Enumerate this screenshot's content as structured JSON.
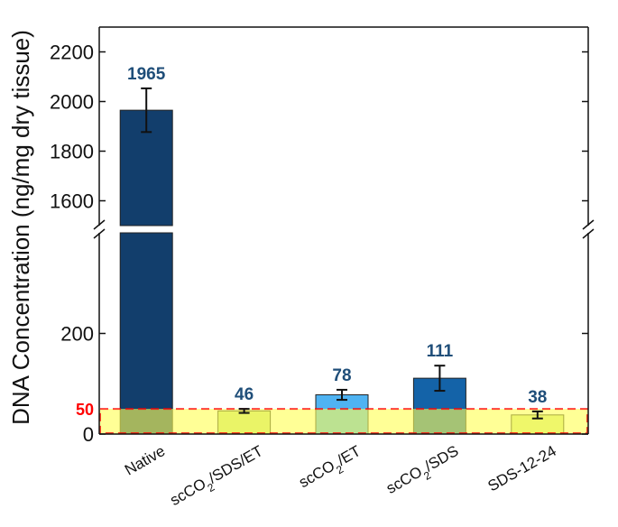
{
  "chart_data": {
    "type": "bar",
    "title": "",
    "ylabel": "DNA Concentration (ng/mg dry tissue)",
    "xlabel": "",
    "y_axis_broken": true,
    "ylim_lower": [
      0,
      400
    ],
    "ylim_upper": [
      1500,
      2300
    ],
    "yticks_lower": [
      "0",
      "200"
    ],
    "yticks_upper": [
      "1600",
      "1800",
      "2000",
      "2200"
    ],
    "categories": [
      {
        "label": "Native",
        "sub": "",
        "tail": ""
      },
      {
        "label": "scCO",
        "sub": "2",
        "tail": "/SDS/ET"
      },
      {
        "label": "scCO",
        "sub": "2",
        "tail": "/ET"
      },
      {
        "label": "scCO",
        "sub": "2",
        "tail": "/SDS"
      },
      {
        "label": "SDS-12-24",
        "sub": "",
        "tail": ""
      }
    ],
    "values": [
      1965,
      46,
      78,
      111,
      38
    ],
    "value_labels": [
      "1965",
      "46",
      "78",
      "111",
      "38"
    ],
    "errors": [
      88,
      4,
      10,
      25,
      7
    ],
    "bar_colors": [
      "#123e6c",
      "#c7e285",
      "#4fb3f2",
      "#1463a8",
      "#d5eb8b"
    ],
    "value_label_color": "#1f4e79",
    "threshold": {
      "value": 50,
      "label": "50",
      "color": "#ff0000",
      "band_color": "#ffff55"
    },
    "grid": false,
    "legend": "none"
  }
}
